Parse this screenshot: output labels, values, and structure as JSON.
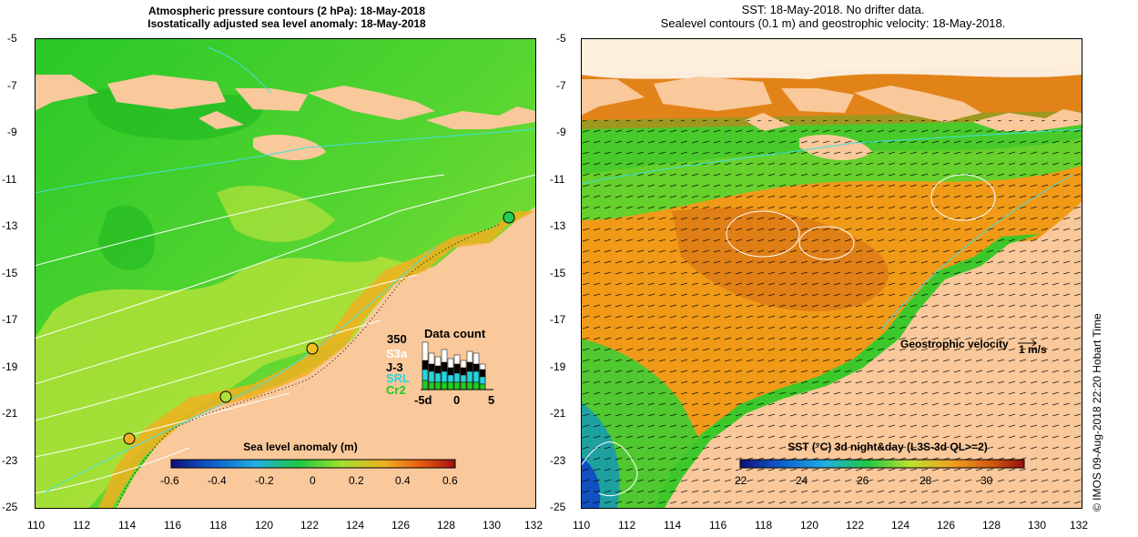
{
  "left_panel": {
    "title_line1": "Atmospheric pressure contours (2 hPa): 18-May-2018",
    "title_line2": "Isostatically adjusted sea level anomaly: 18-May-2018",
    "x_ticks": [
      "110",
      "112",
      "114",
      "116",
      "118",
      "120",
      "122",
      "124",
      "126",
      "128",
      "130",
      "132"
    ],
    "y_ticks": [
      "-5",
      "-7",
      "-9",
      "-11",
      "-13",
      "-15",
      "-17",
      "-19",
      "-21",
      "-23",
      "-25"
    ],
    "colorbar": {
      "label": "Sea level anomaly (m)",
      "ticks": [
        "-0.6",
        "-0.4",
        "-0.2",
        "0",
        "0.2",
        "0.4",
        "0.6"
      ]
    },
    "data_count": {
      "title": "Data count",
      "max_label": "350",
      "sat_labels": [
        {
          "name": "S3a",
          "color": "#ffffff"
        },
        {
          "name": "J-3",
          "color": "#000000"
        },
        {
          "name": "SRL",
          "color": "#22d6e0"
        },
        {
          "name": "Cr2",
          "color": "#22cc22"
        }
      ],
      "axis_labels": [
        "-5d",
        "0",
        "5"
      ]
    }
  },
  "right_panel": {
    "title_line1": "SST: 18-May-2018. No drifter data.",
    "title_line2": "Sealevel contours (0.1 m) and geostrophic velocity: 18-May-2018.",
    "x_ticks": [
      "110",
      "112",
      "114",
      "116",
      "118",
      "120",
      "122",
      "124",
      "126",
      "128",
      "130",
      "132"
    ],
    "y_ticks": [
      "-5",
      "-7",
      "-9",
      "-11",
      "-13",
      "-15",
      "-17",
      "-19",
      "-21",
      "-23",
      "-25"
    ],
    "velocity_label": "Geostrophic velocity",
    "velocity_scale": "1 m/s",
    "colorbar": {
      "label": "SST (°C) 3d night&day (L3S-3d QL>=2)",
      "ticks": [
        "22",
        "24",
        "26",
        "28",
        "30"
      ]
    }
  },
  "side_credit": "© IMOS 09-Aug-2018 22:20 Hobart Time",
  "colors": {
    "land": "#f9c89b",
    "ocean_green": "#3ccf2a",
    "ocean_yellow": "#c8e83a",
    "sst_orange": "#f09a18",
    "sst_dark": "#d06a12"
  }
}
